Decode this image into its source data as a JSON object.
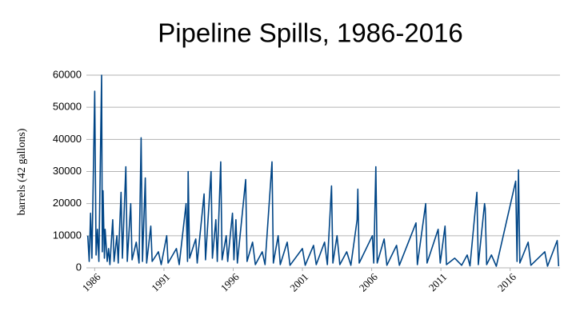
{
  "chart_data": {
    "type": "line",
    "title": "Pipeline Spills, 1986-2016",
    "y_label": "barrels (42 gallons)",
    "xlim": [
      1985.4,
      2019.6
    ],
    "xticks": [
      1986,
      1991,
      1996,
      2001,
      2006,
      2011,
      2016
    ],
    "ylim": [
      0,
      60000
    ],
    "yticks": [
      0,
      10000,
      20000,
      30000,
      40000,
      50000,
      60000
    ],
    "grid": true,
    "x": [
      1985.5,
      1985.6,
      1985.7,
      1985.8,
      1986.0,
      1986.1,
      1986.2,
      1986.3,
      1986.5,
      1986.55,
      1986.6,
      1986.7,
      1986.75,
      1986.9,
      1987.0,
      1987.1,
      1987.3,
      1987.4,
      1987.6,
      1987.7,
      1987.9,
      1988.0,
      1988.25,
      1988.35,
      1988.6,
      1988.7,
      1989.0,
      1989.2,
      1989.35,
      1989.45,
      1989.65,
      1989.75,
      1990.05,
      1990.15,
      1990.6,
      1990.8,
      1991.2,
      1991.3,
      1991.9,
      1992.1,
      1992.6,
      1992.7,
      1992.75,
      1992.85,
      1993.3,
      1993.4,
      1993.9,
      1994.0,
      1994.4,
      1994.5,
      1994.75,
      1994.85,
      1995.1,
      1995.2,
      1995.5,
      1995.6,
      1995.95,
      1996.05,
      1996.2,
      1996.3,
      1996.9,
      1997.0,
      1997.4,
      1997.6,
      1998.1,
      1998.3,
      1998.8,
      1998.9,
      1999.25,
      1999.4,
      1999.9,
      2000.1,
      2001.0,
      2001.2,
      2001.8,
      2002.0,
      2002.6,
      2002.8,
      2003.1,
      2003.2,
      2003.5,
      2003.7,
      2004.2,
      2004.5,
      2004.95,
      2005.0,
      2005.1,
      2006.05,
      2006.15,
      2006.3,
      2006.4,
      2006.9,
      2007.1,
      2007.8,
      2008.0,
      2009.2,
      2009.3,
      2009.9,
      2010.0,
      2010.8,
      2010.95,
      2011.3,
      2011.4,
      2012.0,
      2012.5,
      2012.9,
      2013.1,
      2013.6,
      2013.7,
      2014.15,
      2014.2,
      2014.3,
      2014.65,
      2015.0,
      2016.4,
      2016.5,
      2016.6,
      2016.7,
      2017.3,
      2017.5,
      2018.5,
      2018.7,
      2019.4,
      2019.5
    ],
    "series": [
      {
        "name": "barrels",
        "color": "#004586",
        "values": [
          10000,
          2000,
          17000,
          3000,
          55000,
          4000,
          12000,
          2000,
          60000,
          5000,
          24000,
          3000,
          12000,
          2000,
          6000,
          1000,
          15000,
          2000,
          10000,
          1500,
          23500,
          3000,
          31500,
          2000,
          20000,
          2500,
          8000,
          1500,
          40500,
          2000,
          28000,
          1500,
          13000,
          2000,
          5000,
          1000,
          10000,
          1500,
          6000,
          1000,
          20000,
          2000,
          30000,
          3000,
          9000,
          1500,
          23000,
          2500,
          30000,
          3000,
          15000,
          2000,
          33000,
          2500,
          10000,
          2000,
          17000,
          2500,
          15000,
          1500,
          27500,
          2000,
          8000,
          1000,
          5000,
          1000,
          33000,
          1500,
          10000,
          1000,
          8000,
          800,
          6000,
          800,
          7000,
          1000,
          8000,
          1000,
          25500,
          1500,
          10000,
          1000,
          5000,
          800,
          15000,
          24500,
          1500,
          10000,
          1500,
          31500,
          1500,
          9000,
          800,
          7000,
          800,
          14000,
          1000,
          20000,
          1500,
          12000,
          1500,
          13000,
          1000,
          3000,
          800,
          4000,
          600,
          23500,
          1000,
          20000,
          18500,
          1000,
          4000,
          500,
          27000,
          2000,
          30500,
          1500,
          8000,
          800,
          5000,
          500,
          8500,
          500
        ]
      }
    ]
  }
}
